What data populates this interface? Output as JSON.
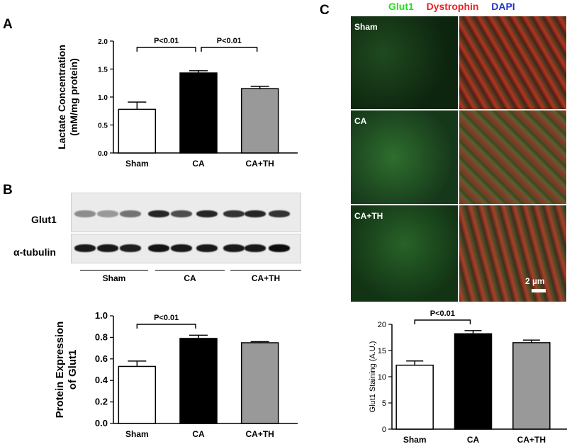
{
  "panels": {
    "A": "A",
    "B": "B",
    "C": "C"
  },
  "chart_data": [
    {
      "id": "A",
      "type": "bar",
      "categories": [
        "Sham",
        "CA",
        "CA+TH"
      ],
      "values": [
        0.78,
        1.43,
        1.15
      ],
      "errors": [
        0.13,
        0.04,
        0.04
      ],
      "colors": [
        "#ffffff",
        "#000000",
        "#999999"
      ],
      "ylabel": [
        "Lactate Concentration",
        "(mM/mg protein)"
      ],
      "ylim": [
        0,
        2.0
      ],
      "yticks": [
        0.0,
        0.5,
        1.0,
        1.5,
        2.0
      ],
      "tick_labels": [
        "0.0",
        "0.5",
        "1.0",
        "1.5",
        "2.0"
      ],
      "comparisons": [
        {
          "from": 0,
          "to": 1,
          "label": "P<0.01"
        },
        {
          "from": 1,
          "to": 2,
          "label": "P<0.01"
        }
      ]
    },
    {
      "id": "B",
      "type": "bar",
      "categories": [
        "Sham",
        "CA",
        "CA+TH"
      ],
      "values": [
        0.53,
        0.79,
        0.75
      ],
      "errors": [
        0.05,
        0.03,
        0.01
      ],
      "colors": [
        "#ffffff",
        "#000000",
        "#999999"
      ],
      "ylabel": [
        "Protein Expression",
        "of Glut1"
      ],
      "ylim": [
        0.0,
        1.0
      ],
      "yticks": [
        0.0,
        0.2,
        0.4,
        0.6,
        0.8,
        1.0
      ],
      "tick_labels": [
        "0.0",
        "0.2",
        "0.4",
        "0.6",
        "0.8",
        "1.0"
      ],
      "comparisons": [
        {
          "from": 0,
          "to": 1,
          "label": "P<0.01"
        }
      ]
    },
    {
      "id": "C",
      "type": "bar",
      "categories": [
        "Sham",
        "CA",
        "CA+TH"
      ],
      "values": [
        12.2,
        18.2,
        16.5
      ],
      "errors": [
        0.8,
        0.6,
        0.5
      ],
      "colors": [
        "#ffffff",
        "#000000",
        "#999999"
      ],
      "ylabel": [
        "Glut1 Staining (A.U.)"
      ],
      "ylim": [
        0,
        20
      ],
      "yticks": [
        0,
        5,
        10,
        15,
        20
      ],
      "tick_labels": [
        "0",
        "5",
        "10",
        "15",
        "20"
      ],
      "comparisons": [
        {
          "from": 0,
          "to": 1,
          "label": "P<0.01"
        }
      ]
    }
  ],
  "blot": {
    "rows": [
      {
        "label": "Glut1",
        "intensities": [
          0.45,
          0.4,
          0.55,
          0.85,
          0.7,
          0.85,
          0.8,
          0.85,
          0.8
        ]
      },
      {
        "label": "α-tubulin",
        "intensities": [
          0.9,
          0.9,
          0.88,
          0.92,
          0.9,
          0.9,
          0.9,
          0.9,
          0.95
        ]
      }
    ],
    "groups": [
      "Sham",
      "CA",
      "CA+TH"
    ]
  },
  "micrograph": {
    "legend": [
      {
        "text": "Glut1",
        "color": "#22dd22"
      },
      {
        "text": "Dystrophin",
        "color": "#ee2222"
      },
      {
        "text": "DAPI",
        "color": "#2233cc"
      }
    ],
    "rows": [
      "Sham",
      "CA",
      "CA+TH"
    ],
    "scale_bar": "2 µm"
  }
}
